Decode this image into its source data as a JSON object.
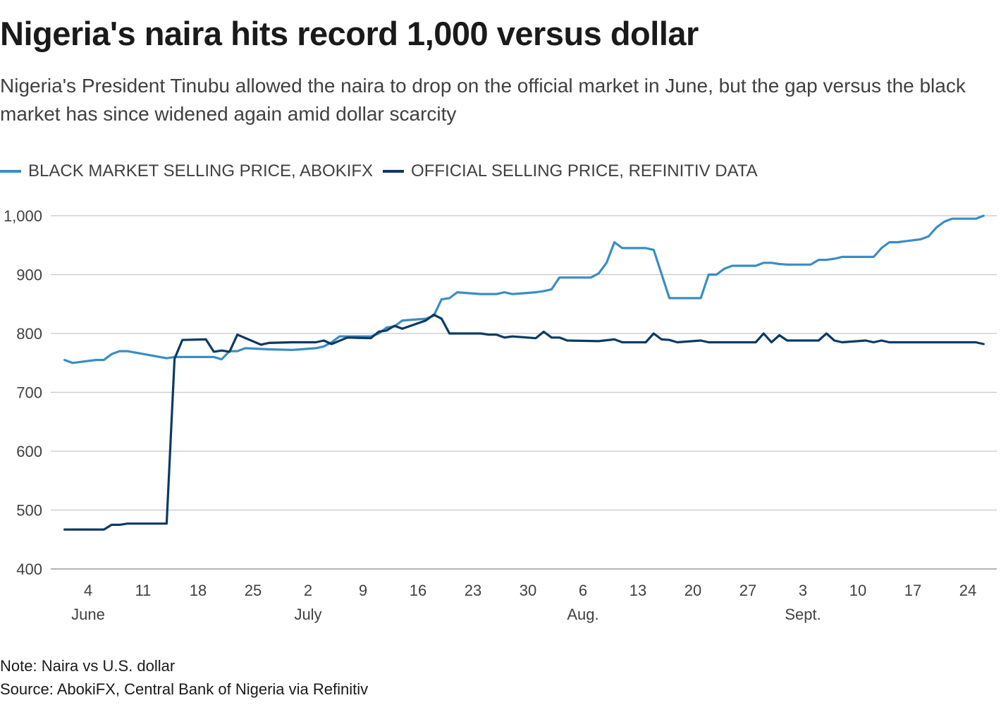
{
  "title": "Nigeria's naira hits record 1,000 versus dollar",
  "subtitle": "Nigeria's President Tinubu allowed the naira to drop on the official market in June, but the gap versus the black market has since widened again amid dollar scarcity",
  "note": "Note: Naira vs U.S. dollar",
  "source": "Source: AbokiFX, Central Bank of Nigeria via Refinitiv",
  "colors": {
    "black_market": "#3a8dc4",
    "official": "#0b3a63",
    "grid": "#c8c8c8",
    "axis_text": "#404040"
  },
  "chart_data": {
    "type": "line",
    "ylim": [
      400,
      1000
    ],
    "yticks": [
      400,
      500,
      600,
      700,
      800,
      900,
      1000
    ],
    "ytick_labels": [
      "400",
      "500",
      "600",
      "700",
      "800",
      "900",
      "1,000"
    ],
    "xlim": [
      "2023-05-31",
      "2023-09-26"
    ],
    "xticks": [
      {
        "date": "2023-06-04",
        "label": "4",
        "month": "June"
      },
      {
        "date": "2023-06-11",
        "label": "11",
        "month": ""
      },
      {
        "date": "2023-06-18",
        "label": "18",
        "month": ""
      },
      {
        "date": "2023-06-25",
        "label": "25",
        "month": ""
      },
      {
        "date": "2023-07-02",
        "label": "2",
        "month": "July"
      },
      {
        "date": "2023-07-09",
        "label": "9",
        "month": ""
      },
      {
        "date": "2023-07-16",
        "label": "16",
        "month": ""
      },
      {
        "date": "2023-07-23",
        "label": "23",
        "month": ""
      },
      {
        "date": "2023-07-30",
        "label": "30",
        "month": ""
      },
      {
        "date": "2023-08-06",
        "label": "6",
        "month": "Aug."
      },
      {
        "date": "2023-08-13",
        "label": "13",
        "month": ""
      },
      {
        "date": "2023-08-20",
        "label": "20",
        "month": ""
      },
      {
        "date": "2023-08-27",
        "label": "27",
        "month": ""
      },
      {
        "date": "2023-09-03",
        "label": "3",
        "month": "Sept."
      },
      {
        "date": "2023-09-10",
        "label": "10",
        "month": ""
      },
      {
        "date": "2023-09-17",
        "label": "17",
        "month": ""
      },
      {
        "date": "2023-09-24",
        "label": "24",
        "month": ""
      }
    ],
    "series": [
      {
        "name": "BLACK MARKET SELLING PRICE, ABOKIFX",
        "color": "#3a8dc4",
        "points": [
          [
            "2023-06-01",
            755
          ],
          [
            "2023-06-02",
            750
          ],
          [
            "2023-06-05",
            755
          ],
          [
            "2023-06-06",
            755
          ],
          [
            "2023-06-07",
            765
          ],
          [
            "2023-06-08",
            770
          ],
          [
            "2023-06-09",
            770
          ],
          [
            "2023-06-14",
            758
          ],
          [
            "2023-06-15",
            760
          ],
          [
            "2023-06-20",
            760
          ],
          [
            "2023-06-21",
            756
          ],
          [
            "2023-06-22",
            770
          ],
          [
            "2023-06-23",
            770
          ],
          [
            "2023-06-24",
            775
          ],
          [
            "2023-06-27",
            773
          ],
          [
            "2023-06-30",
            772
          ],
          [
            "2023-07-03",
            775
          ],
          [
            "2023-07-04",
            778
          ],
          [
            "2023-07-05",
            785
          ],
          [
            "2023-07-06",
            795
          ],
          [
            "2023-07-10",
            795
          ],
          [
            "2023-07-11",
            800
          ],
          [
            "2023-07-12",
            810
          ],
          [
            "2023-07-13",
            812
          ],
          [
            "2023-07-14",
            822
          ],
          [
            "2023-07-17",
            825
          ],
          [
            "2023-07-18",
            830
          ],
          [
            "2023-07-19",
            858
          ],
          [
            "2023-07-20",
            860
          ],
          [
            "2023-07-21",
            870
          ],
          [
            "2023-07-24",
            867
          ],
          [
            "2023-07-26",
            867
          ],
          [
            "2023-07-27",
            870
          ],
          [
            "2023-07-28",
            867
          ],
          [
            "2023-07-31",
            870
          ],
          [
            "2023-08-01",
            872
          ],
          [
            "2023-08-02",
            875
          ],
          [
            "2023-08-03",
            895
          ],
          [
            "2023-08-07",
            895
          ],
          [
            "2023-08-08",
            902
          ],
          [
            "2023-08-09",
            920
          ],
          [
            "2023-08-10",
            955
          ],
          [
            "2023-08-11",
            945
          ],
          [
            "2023-08-14",
            945
          ],
          [
            "2023-08-15",
            942
          ],
          [
            "2023-08-17",
            860
          ],
          [
            "2023-08-21",
            860
          ],
          [
            "2023-08-22",
            900
          ],
          [
            "2023-08-23",
            900
          ],
          [
            "2023-08-24",
            910
          ],
          [
            "2023-08-25",
            915
          ],
          [
            "2023-08-28",
            915
          ],
          [
            "2023-08-29",
            920
          ],
          [
            "2023-08-30",
            920
          ],
          [
            "2023-08-31",
            918
          ],
          [
            "2023-09-01",
            917
          ],
          [
            "2023-09-04",
            917
          ],
          [
            "2023-09-05",
            925
          ],
          [
            "2023-09-06",
            925
          ],
          [
            "2023-09-07",
            927
          ],
          [
            "2023-09-08",
            930
          ],
          [
            "2023-09-12",
            930
          ],
          [
            "2023-09-13",
            945
          ],
          [
            "2023-09-14",
            955
          ],
          [
            "2023-09-15",
            955
          ],
          [
            "2023-09-18",
            960
          ],
          [
            "2023-09-19",
            965
          ],
          [
            "2023-09-20",
            980
          ],
          [
            "2023-09-21",
            990
          ],
          [
            "2023-09-22",
            995
          ],
          [
            "2023-09-25",
            995
          ],
          [
            "2023-09-26",
            1000
          ]
        ]
      },
      {
        "name": "OFFICIAL SELLING PRICE, REFINITIV DATA",
        "color": "#0b3a63",
        "points": [
          [
            "2023-06-01",
            467
          ],
          [
            "2023-06-06",
            467
          ],
          [
            "2023-06-07",
            475
          ],
          [
            "2023-06-08",
            475
          ],
          [
            "2023-06-09",
            477
          ],
          [
            "2023-06-14",
            477
          ],
          [
            "2023-06-15",
            757
          ],
          [
            "2023-06-16",
            789
          ],
          [
            "2023-06-19",
            790
          ],
          [
            "2023-06-20",
            769
          ],
          [
            "2023-06-21",
            771
          ],
          [
            "2023-06-22",
            769
          ],
          [
            "2023-06-23",
            798
          ],
          [
            "2023-06-26",
            781
          ],
          [
            "2023-06-27",
            784
          ],
          [
            "2023-06-30",
            785
          ],
          [
            "2023-07-03",
            785
          ],
          [
            "2023-07-04",
            788
          ],
          [
            "2023-07-05",
            782
          ],
          [
            "2023-07-07",
            793
          ],
          [
            "2023-07-10",
            792
          ],
          [
            "2023-07-11",
            803
          ],
          [
            "2023-07-12",
            805
          ],
          [
            "2023-07-13",
            813
          ],
          [
            "2023-07-14",
            808
          ],
          [
            "2023-07-17",
            822
          ],
          [
            "2023-07-18",
            832
          ],
          [
            "2023-07-19",
            825
          ],
          [
            "2023-07-20",
            800
          ],
          [
            "2023-07-24",
            800
          ],
          [
            "2023-07-25",
            798
          ],
          [
            "2023-07-26",
            798
          ],
          [
            "2023-07-27",
            793
          ],
          [
            "2023-07-28",
            795
          ],
          [
            "2023-07-31",
            792
          ],
          [
            "2023-08-01",
            803
          ],
          [
            "2023-08-02",
            793
          ],
          [
            "2023-08-03",
            793
          ],
          [
            "2023-08-04",
            788
          ],
          [
            "2023-08-08",
            787
          ],
          [
            "2023-08-10",
            790
          ],
          [
            "2023-08-11",
            785
          ],
          [
            "2023-08-14",
            785
          ],
          [
            "2023-08-15",
            800
          ],
          [
            "2023-08-16",
            790
          ],
          [
            "2023-08-17",
            789
          ],
          [
            "2023-08-18",
            785
          ],
          [
            "2023-08-21",
            788
          ],
          [
            "2023-08-22",
            785
          ],
          [
            "2023-08-24",
            785
          ],
          [
            "2023-08-28",
            785
          ],
          [
            "2023-08-29",
            800
          ],
          [
            "2023-08-30",
            785
          ],
          [
            "2023-08-31",
            797
          ],
          [
            "2023-09-01",
            788
          ],
          [
            "2023-09-05",
            788
          ],
          [
            "2023-09-06",
            800
          ],
          [
            "2023-09-07",
            788
          ],
          [
            "2023-09-08",
            785
          ],
          [
            "2023-09-11",
            788
          ],
          [
            "2023-09-12",
            785
          ],
          [
            "2023-09-13",
            788
          ],
          [
            "2023-09-14",
            785
          ],
          [
            "2023-09-25",
            785
          ],
          [
            "2023-09-26",
            782
          ]
        ]
      }
    ]
  }
}
